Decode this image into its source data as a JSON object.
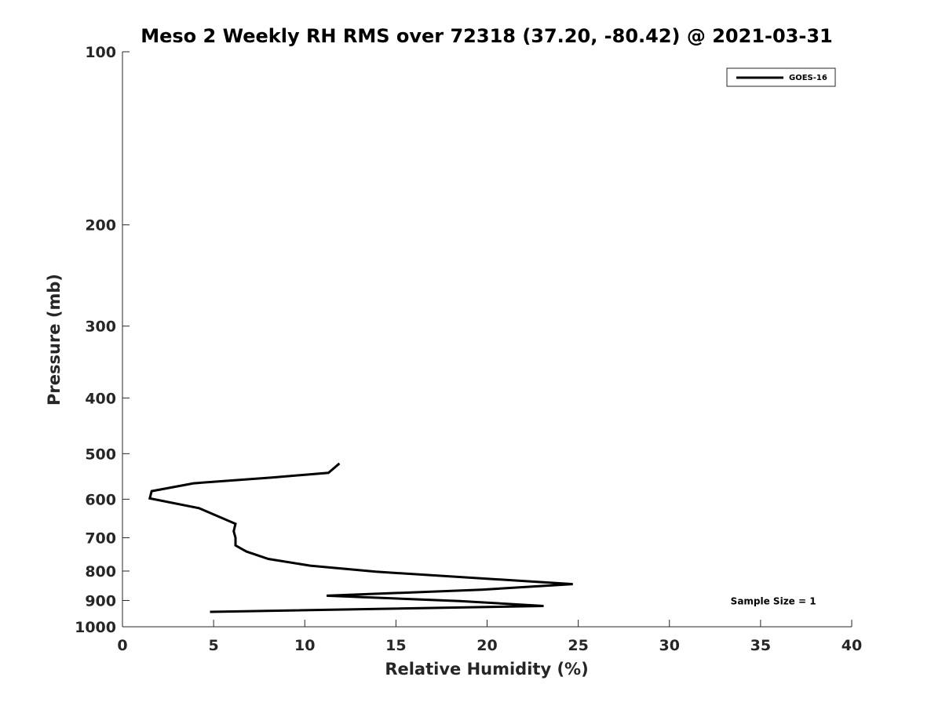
{
  "chart_data": {
    "type": "line",
    "title": "Meso 2 Weekly RH RMS over 72318 (37.20, -80.42) @ 2021-03-31",
    "xlabel": "Relative Humidity (%)",
    "ylabel": "Pressure (mb)",
    "xlim": [
      0,
      40
    ],
    "ylim": [
      100,
      1000
    ],
    "y_scale": "log",
    "y_reversed": true,
    "x_ticks": [
      0,
      5,
      10,
      15,
      20,
      25,
      30,
      35,
      40
    ],
    "y_ticks": [
      100,
      200,
      300,
      400,
      500,
      600,
      700,
      800,
      900,
      1000
    ],
    "grid": false,
    "legend_position": "top-right",
    "series": [
      {
        "name": "GOES-16",
        "color": "#000000",
        "points": [
          {
            "x": 11.9,
            "y": 520
          },
          {
            "x": 11.3,
            "y": 540
          },
          {
            "x": 8.2,
            "y": 550
          },
          {
            "x": 3.9,
            "y": 563
          },
          {
            "x": 1.6,
            "y": 581
          },
          {
            "x": 1.5,
            "y": 598
          },
          {
            "x": 4.2,
            "y": 622
          },
          {
            "x": 6.2,
            "y": 662
          },
          {
            "x": 6.1,
            "y": 682
          },
          {
            "x": 6.2,
            "y": 700
          },
          {
            "x": 6.2,
            "y": 722
          },
          {
            "x": 6.8,
            "y": 740
          },
          {
            "x": 8.0,
            "y": 762
          },
          {
            "x": 10.3,
            "y": 783
          },
          {
            "x": 13.9,
            "y": 802
          },
          {
            "x": 24.7,
            "y": 843
          },
          {
            "x": 19.7,
            "y": 862
          },
          {
            "x": 11.2,
            "y": 883
          },
          {
            "x": 18.5,
            "y": 902
          },
          {
            "x": 23.1,
            "y": 920
          },
          {
            "x": 4.8,
            "y": 942
          }
        ]
      }
    ],
    "annotations": [
      {
        "text": "Sample Size = 1",
        "x": 35.7,
        "y": 900
      }
    ]
  }
}
